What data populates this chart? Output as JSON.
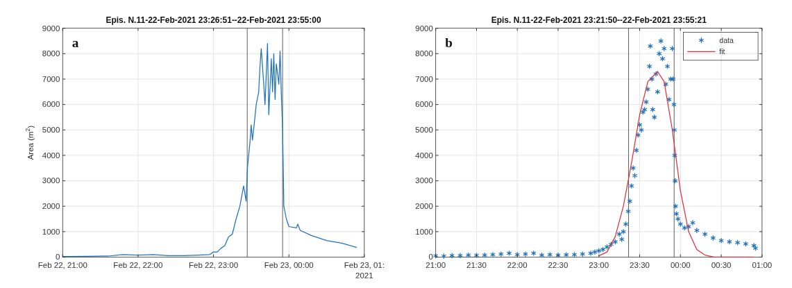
{
  "chart_data": [
    {
      "type": "line",
      "title": "Epis. N.11-22-Feb-2021 23:26:51--22-Feb-2021 23:55:00",
      "ylabel": "Area (m$^{2}$)",
      "annotations": [
        "a",
        "2021"
      ],
      "xlim": [
        "2021-02-22T21:00",
        "2021-02-23T01:00"
      ],
      "xticks": [
        {
          "value": "2021-02-22T21:00",
          "label": "Feb 22, 21:00"
        },
        {
          "value": "2021-02-22T22:00",
          "label": "Feb 22, 22:00"
        },
        {
          "value": "2021-02-22T23:00",
          "label": "Feb 22, 23:00"
        },
        {
          "value": "2021-02-23T00:00",
          "label": "Feb 23, 00:00"
        },
        {
          "value": "2021-02-23T01:00",
          "label": "Feb 23, 01:"
        }
      ],
      "ylim": [
        0,
        9000
      ],
      "yticks": [
        0,
        1000,
        2000,
        3000,
        4000,
        5000,
        6000,
        7000,
        8000,
        9000
      ],
      "grid": true,
      "line_style": "solid",
      "marker": "none",
      "ref_lines": [
        {
          "axis": "x",
          "value": "2021-02-22T23:26:51",
          "color": "#555555"
        },
        {
          "axis": "x",
          "value": "2021-02-22T23:55:00",
          "color": "#555555"
        }
      ],
      "series": [
        {
          "color": "#1f72bd",
          "x": [
            "2021-02-22T21:00",
            "2021-02-22T21:18",
            "2021-02-22T21:36",
            "2021-02-22T21:48",
            "2021-02-22T22:00",
            "2021-02-22T22:12",
            "2021-02-22T22:24",
            "2021-02-22T22:36",
            "2021-02-22T22:48",
            "2021-02-22T22:57",
            "2021-02-22T23:00",
            "2021-02-22T23:03",
            "2021-02-22T23:06",
            "2021-02-22T23:09",
            "2021-02-22T23:12",
            "2021-02-22T23:15",
            "2021-02-22T23:18",
            "2021-02-22T23:21",
            "2021-02-22T23:24",
            "2021-02-22T23:26",
            "2021-02-22T23:27",
            "2021-02-22T23:29",
            "2021-02-22T23:30",
            "2021-02-22T23:31",
            "2021-02-22T23:33",
            "2021-02-22T23:34",
            "2021-02-22T23:36",
            "2021-02-22T23:37",
            "2021-02-22T23:38",
            "2021-02-22T23:40",
            "2021-02-22T23:41",
            "2021-02-22T23:42",
            "2021-02-22T23:43",
            "2021-02-22T23:44",
            "2021-02-22T23:46",
            "2021-02-22T23:47",
            "2021-02-22T23:48",
            "2021-02-22T23:49",
            "2021-02-22T23:50",
            "2021-02-22T23:52",
            "2021-02-22T23:53",
            "2021-02-22T23:54",
            "2021-02-22T23:55",
            "2021-02-22T23:56",
            "2021-02-22T23:58",
            "2021-02-23T00:00",
            "2021-02-23T00:06",
            "2021-02-23T00:07",
            "2021-02-23T00:09",
            "2021-02-23T00:18",
            "2021-02-23T00:30",
            "2021-02-23T00:42",
            "2021-02-23T00:54"
          ],
          "values": [
            20,
            30,
            40,
            100,
            80,
            100,
            60,
            60,
            80,
            100,
            200,
            200,
            350,
            450,
            800,
            900,
            1500,
            2000,
            2800,
            2200,
            3500,
            4500,
            5200,
            4600,
            5500,
            6000,
            6500,
            7500,
            8200,
            6800,
            6000,
            7200,
            8400,
            5600,
            7800,
            6500,
            8000,
            6200,
            7600,
            6800,
            8100,
            6400,
            5000,
            2000,
            1500,
            1200,
            1150,
            1300,
            1050,
            850,
            650,
            550,
            380
          ]
        }
      ]
    },
    {
      "type": "scatter",
      "title": "Epis. N.11-22-Feb-2021 23:21:50--22-Feb-2021 23:55:21",
      "annotations": [
        "b"
      ],
      "xlim": [
        "2021-02-22T21:00",
        "2021-02-23T01:00"
      ],
      "xticks": [
        {
          "value": "2021-02-22T21:00",
          "label": "21:00"
        },
        {
          "value": "2021-02-22T21:30",
          "label": "21:30"
        },
        {
          "value": "2021-02-22T22:00",
          "label": "22:00"
        },
        {
          "value": "2021-02-22T22:30",
          "label": "22:30"
        },
        {
          "value": "2021-02-22T23:00",
          "label": "23:00"
        },
        {
          "value": "2021-02-22T23:30",
          "label": "23:30"
        },
        {
          "value": "2021-02-23T00:00",
          "label": "00:00"
        },
        {
          "value": "2021-02-23T00:30",
          "label": "00:30"
        },
        {
          "value": "2021-02-23T01:00",
          "label": "01:00"
        }
      ],
      "ylim": [
        0,
        9000
      ],
      "yticks": [
        0,
        1000,
        2000,
        3000,
        4000,
        5000,
        6000,
        7000,
        8000,
        9000
      ],
      "grid": true,
      "legend": "top right",
      "ref_lines": [
        {
          "axis": "x",
          "value": "2021-02-22T23:21:50",
          "color": "#555555"
        },
        {
          "axis": "x",
          "value": "2021-02-22T23:55:21",
          "color": "#555555"
        }
      ],
      "series": [
        {
          "name": "data",
          "type": "scatter",
          "marker": "cross",
          "color": "#1f72bd",
          "x": [
            "2021-02-22T21:00",
            "2021-02-22T21:06",
            "2021-02-22T21:12",
            "2021-02-22T21:18",
            "2021-02-22T21:24",
            "2021-02-22T21:30",
            "2021-02-22T21:36",
            "2021-02-22T21:42",
            "2021-02-22T21:48",
            "2021-02-22T21:54",
            "2021-02-22T22:00",
            "2021-02-22T22:06",
            "2021-02-22T22:12",
            "2021-02-22T22:18",
            "2021-02-22T22:24",
            "2021-02-22T22:30",
            "2021-02-22T22:36",
            "2021-02-22T22:42",
            "2021-02-22T22:48",
            "2021-02-22T22:54",
            "2021-02-22T22:57",
            "2021-02-22T23:00",
            "2021-02-22T23:03",
            "2021-02-22T23:06",
            "2021-02-22T23:09",
            "2021-02-22T23:12",
            "2021-02-22T23:15",
            "2021-02-22T23:16:48",
            "2021-02-22T23:18",
            "2021-02-22T23:19:48",
            "2021-02-22T23:21:36",
            "2021-02-22T23:22:48",
            "2021-02-22T23:24",
            "2021-02-22T23:25:12",
            "2021-02-22T23:26:24",
            "2021-02-22T23:27:36",
            "2021-02-22T23:28:48",
            "2021-02-22T23:30",
            "2021-02-22T23:31:12",
            "2021-02-22T23:32:24",
            "2021-02-22T23:33:36",
            "2021-02-22T23:34:48",
            "2021-02-22T23:36",
            "2021-02-22T23:37:12",
            "2021-02-22T23:37:48",
            "2021-02-22T23:39",
            "2021-02-22T23:39:36",
            "2021-02-22T23:40:48",
            "2021-02-22T23:42",
            "2021-02-22T23:43:12",
            "2021-02-22T23:44:24",
            "2021-02-22T23:45:36",
            "2021-02-22T23:46:48",
            "2021-02-22T23:48",
            "2021-02-22T23:49:12",
            "2021-02-22T23:50:24",
            "2021-02-22T23:51:36",
            "2021-02-22T23:52:48",
            "2021-02-22T23:54",
            "2021-02-22T23:54:36",
            "2021-02-22T23:55:12",
            "2021-02-22T23:55:30",
            "2021-02-22T23:55:48",
            "2021-02-22T23:56:06",
            "2021-02-22T23:56:24",
            "2021-02-22T23:57",
            "2021-02-22T23:58:12",
            "2021-02-23T00:00",
            "2021-02-23T00:03",
            "2021-02-23T00:06",
            "2021-02-23T00:09",
            "2021-02-23T00:12",
            "2021-02-23T00:18",
            "2021-02-23T00:24",
            "2021-02-23T00:30",
            "2021-02-23T00:36",
            "2021-02-23T00:42",
            "2021-02-23T00:48",
            "2021-02-23T00:54",
            "2021-02-23T00:55:12"
          ],
          "values": [
            50,
            40,
            60,
            60,
            80,
            70,
            80,
            100,
            120,
            150,
            100,
            120,
            150,
            80,
            100,
            80,
            90,
            100,
            120,
            150,
            200,
            250,
            300,
            400,
            500,
            600,
            900,
            700,
            1000,
            1300,
            1800,
            2200,
            2800,
            3500,
            3200,
            4200,
            4800,
            5200,
            5000,
            5700,
            5800,
            6100,
            6600,
            7500,
            8300,
            7000,
            5800,
            5500,
            7200,
            6500,
            8000,
            8500,
            7800,
            8200,
            6800,
            7500,
            6200,
            7000,
            8200,
            7000,
            6000,
            5000,
            4000,
            3000,
            2000,
            1700,
            1500,
            1300,
            1150,
            1200,
            1350,
            1050,
            900,
            750,
            650,
            600,
            570,
            520,
            450,
            350
          ]
        },
        {
          "name": "fit",
          "type": "line",
          "marker": "none",
          "line_style": "solid",
          "color": "#e0303a",
          "x": [
            "2021-02-22T23:00",
            "2021-02-22T23:06",
            "2021-02-22T23:12",
            "2021-02-22T23:18",
            "2021-02-22T23:24",
            "2021-02-22T23:30",
            "2021-02-22T23:36",
            "2021-02-22T23:43:12",
            "2021-02-22T23:48",
            "2021-02-22T23:54",
            "2021-02-23T00:00",
            "2021-02-23T00:06",
            "2021-02-23T00:12",
            "2021-02-23T00:18",
            "2021-02-23T00:24",
            "2021-02-23T00:54"
          ],
          "values": [
            50,
            200,
            800,
            2000,
            3700,
            5600,
            6900,
            7300,
            6900,
            5000,
            2600,
            1000,
            300,
            80,
            10,
            0
          ]
        }
      ]
    }
  ]
}
